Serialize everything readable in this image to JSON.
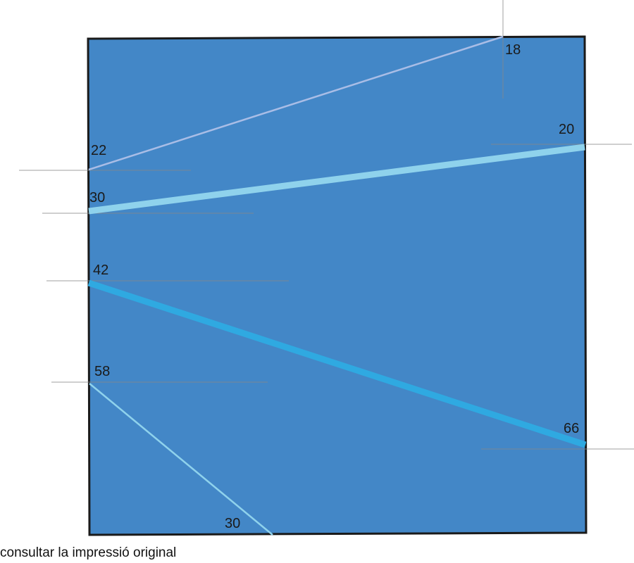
{
  "diagram": {
    "panel_color": "#4387c7",
    "labels": {
      "top_18": "18",
      "left_22": "22",
      "left_30": "30",
      "right_20": "20",
      "left_42": "42",
      "left_58": "58",
      "right_66": "66",
      "bottom_30": "30"
    },
    "line_colors": {
      "line_22_18": "#a9bde6",
      "line_30_20": "#8fd2ec",
      "line_42_66": "#2fa9e1",
      "line_58_30": "#8fd2ec"
    }
  },
  "caption": "consultar la impressió original"
}
